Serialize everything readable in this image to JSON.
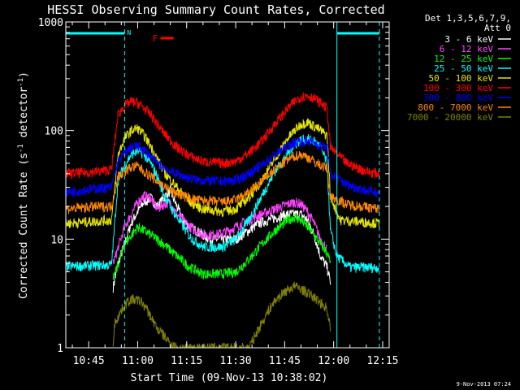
{
  "chart_data": {
    "type": "line",
    "title": "HESSI Observing Summary Count Rates, Corrected",
    "xlabel": "Start Time (09-Nov-13 10:38:02)",
    "ylabel_main": "Corrected Count Rate (s",
    "ylabel_sup1": "-1",
    "ylabel_mid": " detector",
    "ylabel_sup2": "-1",
    "ylabel_end": ")",
    "yscale": "log",
    "ylim": [
      1,
      1000
    ],
    "xlim_minutes": [
      38,
      137
    ],
    "x_ticks": [
      {
        "m": 45,
        "label": "10:45"
      },
      {
        "m": 60,
        "label": "11:00"
      },
      {
        "m": 75,
        "label": "11:15"
      },
      {
        "m": 90,
        "label": "11:30"
      },
      {
        "m": 105,
        "label": "11:45"
      },
      {
        "m": 120,
        "label": "12:00"
      },
      {
        "m": 135,
        "label": "12:15"
      }
    ],
    "y_ticks": [
      {
        "v": 1,
        "label": "1"
      },
      {
        "v": 10,
        "label": "10"
      },
      {
        "v": 100,
        "label": "100"
      },
      {
        "v": 1000,
        "label": "1000"
      }
    ],
    "legend_title": "Det 1,3,5,6,7,9,",
    "legend_subtitle": "Att 0",
    "flags": {
      "night_label": "N",
      "flare_label": "F",
      "night_color": "#00ffff",
      "flare_color": "#ff0000",
      "night_intervals": [
        [
          38,
          56
        ],
        [
          121,
          134
        ]
      ],
      "flare_interval": [
        67,
        71
      ],
      "vlines": [
        56,
        121,
        134
      ]
    },
    "series": [
      {
        "name": "3 - 6 keV",
        "color": "#ffffff",
        "points": [
          [
            52.5,
            3.6
          ],
          [
            54,
            6
          ],
          [
            56,
            9
          ],
          [
            58,
            14
          ],
          [
            60,
            18
          ],
          [
            62,
            22
          ],
          [
            64,
            24
          ],
          [
            66,
            20
          ],
          [
            68,
            24
          ],
          [
            70,
            28
          ],
          [
            72,
            20
          ],
          [
            74,
            15
          ],
          [
            76,
            13
          ],
          [
            78,
            12
          ],
          [
            80,
            11
          ],
          [
            82,
            10
          ],
          [
            86,
            10
          ],
          [
            90,
            10
          ],
          [
            94,
            12
          ],
          [
            97,
            14
          ],
          [
            100,
            15
          ],
          [
            103,
            16
          ],
          [
            106,
            17
          ],
          [
            108,
            17
          ],
          [
            110,
            17
          ],
          [
            112,
            15
          ],
          [
            114,
            11
          ],
          [
            116,
            7
          ],
          [
            118,
            5.5
          ],
          [
            119,
            4
          ]
        ]
      },
      {
        "name": "6 - 12 keV",
        "color": "#ff44ff",
        "points": [
          [
            52.5,
            6
          ],
          [
            56,
            13
          ],
          [
            60,
            22
          ],
          [
            62,
            25
          ],
          [
            64,
            24
          ],
          [
            66,
            19
          ],
          [
            68,
            21
          ],
          [
            70,
            22
          ],
          [
            72,
            17
          ],
          [
            74,
            15
          ],
          [
            76,
            13
          ],
          [
            78,
            12
          ],
          [
            80,
            11
          ],
          [
            84,
            11
          ],
          [
            88,
            12
          ],
          [
            92,
            14
          ],
          [
            96,
            16
          ],
          [
            100,
            18
          ],
          [
            104,
            20
          ],
          [
            108,
            22
          ],
          [
            110,
            21
          ],
          [
            112,
            18
          ],
          [
            114,
            14
          ],
          [
            116,
            10
          ],
          [
            118,
            8
          ]
        ]
      },
      {
        "name": "12 - 25 keV",
        "color": "#00ff00",
        "points": [
          [
            52.5,
            4.2
          ],
          [
            56,
            9
          ],
          [
            60,
            13
          ],
          [
            64,
            11
          ],
          [
            68,
            9
          ],
          [
            72,
            7
          ],
          [
            76,
            5.5
          ],
          [
            80,
            4.8
          ],
          [
            86,
            4.8
          ],
          [
            90,
            5
          ],
          [
            94,
            6.5
          ],
          [
            98,
            9
          ],
          [
            102,
            12
          ],
          [
            106,
            15
          ],
          [
            108,
            16
          ],
          [
            110,
            15
          ],
          [
            112,
            13
          ],
          [
            114,
            11
          ],
          [
            116,
            9
          ],
          [
            118,
            7.5
          ],
          [
            119,
            6
          ]
        ]
      },
      {
        "name": "25 - 50 keV",
        "color": "#00ffff",
        "points": [
          [
            38,
            5.6
          ],
          [
            52,
            5.8
          ],
          [
            54,
            35
          ],
          [
            56,
            48
          ],
          [
            58,
            60
          ],
          [
            60,
            65
          ],
          [
            62,
            60
          ],
          [
            64,
            50
          ],
          [
            66,
            38
          ],
          [
            68,
            26
          ],
          [
            70,
            20
          ],
          [
            72,
            16
          ],
          [
            74,
            13
          ],
          [
            76,
            10.5
          ],
          [
            80,
            8.5
          ],
          [
            86,
            8.5
          ],
          [
            90,
            10
          ],
          [
            94,
            15
          ],
          [
            98,
            25
          ],
          [
            102,
            42
          ],
          [
            106,
            62
          ],
          [
            108,
            75
          ],
          [
            110,
            82
          ],
          [
            112,
            84
          ],
          [
            114,
            80
          ],
          [
            116,
            70
          ],
          [
            118,
            50
          ],
          [
            119,
            12
          ],
          [
            121,
            7
          ],
          [
            125,
            5.5
          ],
          [
            134,
            5.5
          ]
        ]
      },
      {
        "name": "50 - 100 keV",
        "color": "#e6e600",
        "points": [
          [
            38,
            14
          ],
          [
            52,
            15
          ],
          [
            54,
            60
          ],
          [
            56,
            85
          ],
          [
            58,
            100
          ],
          [
            60,
            105
          ],
          [
            62,
            90
          ],
          [
            64,
            72
          ],
          [
            66,
            55
          ],
          [
            68,
            42
          ],
          [
            72,
            30
          ],
          [
            76,
            22
          ],
          [
            80,
            19
          ],
          [
            86,
            18
          ],
          [
            90,
            19
          ],
          [
            94,
            24
          ],
          [
            98,
            35
          ],
          [
            102,
            55
          ],
          [
            106,
            85
          ],
          [
            108,
            100
          ],
          [
            110,
            115
          ],
          [
            112,
            120
          ],
          [
            114,
            110
          ],
          [
            116,
            100
          ],
          [
            118,
            90
          ],
          [
            119,
            25
          ],
          [
            122,
            15
          ],
          [
            134,
            14
          ]
        ]
      },
      {
        "name": "100 - 300 keV",
        "color": "#ff0000",
        "points": [
          [
            38,
            40
          ],
          [
            48,
            42
          ],
          [
            52,
            44
          ],
          [
            54,
            140
          ],
          [
            56,
            170
          ],
          [
            58,
            185
          ],
          [
            60,
            180
          ],
          [
            62,
            160
          ],
          [
            64,
            140
          ],
          [
            66,
            115
          ],
          [
            68,
            95
          ],
          [
            72,
            70
          ],
          [
            76,
            58
          ],
          [
            80,
            52
          ],
          [
            86,
            50
          ],
          [
            90,
            52
          ],
          [
            94,
            62
          ],
          [
            98,
            80
          ],
          [
            102,
            115
          ],
          [
            106,
            160
          ],
          [
            108,
            185
          ],
          [
            110,
            205
          ],
          [
            112,
            210
          ],
          [
            114,
            200
          ],
          [
            116,
            180
          ],
          [
            118,
            160
          ],
          [
            119,
            70
          ],
          [
            124,
            50
          ],
          [
            130,
            42
          ],
          [
            134,
            40
          ]
        ]
      },
      {
        "name": "300 - 800 keV",
        "color": "#0000ff",
        "points": [
          [
            38,
            27
          ],
          [
            46,
            29
          ],
          [
            52,
            30
          ],
          [
            54,
            52
          ],
          [
            56,
            62
          ],
          [
            58,
            70
          ],
          [
            60,
            72
          ],
          [
            62,
            66
          ],
          [
            64,
            58
          ],
          [
            66,
            50
          ],
          [
            70,
            42
          ],
          [
            74,
            38
          ],
          [
            78,
            35
          ],
          [
            86,
            34
          ],
          [
            90,
            35
          ],
          [
            94,
            40
          ],
          [
            98,
            48
          ],
          [
            102,
            60
          ],
          [
            106,
            72
          ],
          [
            108,
            78
          ],
          [
            110,
            80
          ],
          [
            112,
            80
          ],
          [
            114,
            78
          ],
          [
            116,
            72
          ],
          [
            118,
            70
          ],
          [
            119,
            40
          ],
          [
            124,
            32
          ],
          [
            130,
            28
          ],
          [
            134,
            27
          ]
        ]
      },
      {
        "name": "800 - 7000 keV",
        "color": "#ff8800",
        "points": [
          [
            38,
            19
          ],
          [
            48,
            20
          ],
          [
            52,
            20
          ],
          [
            54,
            38
          ],
          [
            56,
            42
          ],
          [
            58,
            46
          ],
          [
            60,
            47
          ],
          [
            62,
            42
          ],
          [
            64,
            38
          ],
          [
            66,
            34
          ],
          [
            70,
            28
          ],
          [
            74,
            25
          ],
          [
            78,
            23
          ],
          [
            86,
            22
          ],
          [
            90,
            23
          ],
          [
            94,
            27
          ],
          [
            98,
            34
          ],
          [
            102,
            44
          ],
          [
            106,
            54
          ],
          [
            108,
            58
          ],
          [
            110,
            60
          ],
          [
            112,
            57
          ],
          [
            114,
            52
          ],
          [
            116,
            48
          ],
          [
            118,
            45
          ],
          [
            119,
            25
          ],
          [
            124,
            21
          ],
          [
            134,
            19
          ]
        ]
      },
      {
        "name": "7000 - 20000 keV",
        "color": "#808000",
        "points": [
          [
            52.5,
            1.1
          ],
          [
            53,
            1.7
          ],
          [
            56,
            2.5
          ],
          [
            58,
            2.8
          ],
          [
            61,
            2.7
          ],
          [
            63,
            2.2
          ],
          [
            66,
            1.5
          ],
          [
            68,
            1.3
          ],
          [
            70,
            1.1
          ],
          [
            72,
            1
          ],
          [
            94,
            1
          ],
          [
            96,
            1.3
          ],
          [
            98,
            1.7
          ],
          [
            100,
            2.2
          ],
          [
            102,
            2.7
          ],
          [
            105,
            3.3
          ],
          [
            108,
            3.7
          ],
          [
            110,
            3.5
          ],
          [
            112,
            3.2
          ],
          [
            114,
            2.9
          ],
          [
            116,
            2.6
          ],
          [
            118,
            2.3
          ],
          [
            119,
            1.5
          ]
        ]
      }
    ]
  },
  "footer_timestamp": "9-Nov-2013 07:24"
}
